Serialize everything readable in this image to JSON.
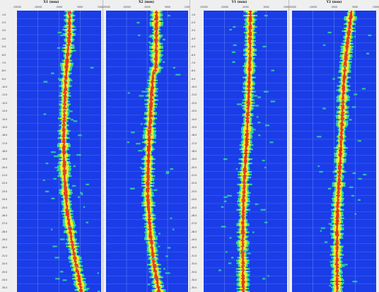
{
  "chart_data": [
    {
      "type": "heatmap",
      "title": "X1 (mm)",
      "xlim": [
        -25000,
        15000
      ],
      "xticks": [
        "-25000",
        "-15000",
        "-5000",
        "5000",
        "15000"
      ],
      "colors": {
        "background": "#1a3de8",
        "low": "#2fd6a0",
        "mid": "#f4ee28",
        "high": "#e8321e"
      },
      "track": [
        {
          "depth_frac": 0.0,
          "x": 0
        },
        {
          "depth_frac": 0.1,
          "x": -200
        },
        {
          "depth_frac": 0.2,
          "x": -1500
        },
        {
          "depth_frac": 0.3,
          "x": -2200
        },
        {
          "depth_frac": 0.45,
          "x": -2800
        },
        {
          "depth_frac": 0.6,
          "x": -2300
        },
        {
          "depth_frac": 0.72,
          "x": -1000
        },
        {
          "depth_frac": 0.85,
          "x": 1800
        },
        {
          "depth_frac": 1.0,
          "x": 5800
        }
      ]
    },
    {
      "type": "heatmap",
      "title": "X2 (mm)",
      "xlim": [
        -25000,
        15000
      ],
      "xticks": [
        "-25000",
        "-15000",
        "-5000",
        "5000",
        "15000"
      ],
      "colors": {
        "background": "#1a3de8",
        "low": "#2fd6a0",
        "mid": "#f4ee28",
        "high": "#e8321e"
      },
      "track": [
        {
          "depth_frac": 0.0,
          "x": -400
        },
        {
          "depth_frac": 0.2,
          "x": -600
        },
        {
          "depth_frac": 0.23,
          "x": -2200
        },
        {
          "depth_frac": 0.35,
          "x": -3200
        },
        {
          "depth_frac": 0.5,
          "x": -4300
        },
        {
          "depth_frac": 0.65,
          "x": -4700
        },
        {
          "depth_frac": 0.8,
          "x": -3300
        },
        {
          "depth_frac": 0.9,
          "x": -1600
        },
        {
          "depth_frac": 1.0,
          "x": 900
        }
      ]
    },
    {
      "type": "heatmap",
      "title": "Y1 (mm)",
      "xlim": [
        -25000,
        15000
      ],
      "xticks": [
        "-25000",
        "-15000",
        "-5000",
        "5000",
        "15000"
      ],
      "colors": {
        "background": "#1a3de8",
        "low": "#2fd6a0",
        "mid": "#f4ee28",
        "high": "#e8321e"
      },
      "track": [
        {
          "depth_frac": 0.0,
          "x": -2600
        },
        {
          "depth_frac": 0.15,
          "x": -2800
        },
        {
          "depth_frac": 0.3,
          "x": -3400
        },
        {
          "depth_frac": 0.45,
          "x": -4300
        },
        {
          "depth_frac": 0.6,
          "x": -5500
        },
        {
          "depth_frac": 0.75,
          "x": -6200
        },
        {
          "depth_frac": 0.9,
          "x": -6200
        },
        {
          "depth_frac": 1.0,
          "x": -6000
        }
      ]
    },
    {
      "type": "heatmap",
      "title": "Y2 (mm)",
      "xlim": [
        -25000,
        15000
      ],
      "xticks": [
        "-25000",
        "-15000",
        "-5000",
        "5000",
        "15000"
      ],
      "colors": {
        "background": "#1a3de8",
        "low": "#2fd6a0",
        "mid": "#f4ee28",
        "high": "#e8321e"
      },
      "track": [
        {
          "depth_frac": 0.0,
          "x": 3200
        },
        {
          "depth_frac": 0.12,
          "x": 1200
        },
        {
          "depth_frac": 0.25,
          "x": -400
        },
        {
          "depth_frac": 0.4,
          "x": -1200
        },
        {
          "depth_frac": 0.55,
          "x": -2300
        },
        {
          "depth_frac": 0.7,
          "x": -3400
        },
        {
          "depth_frac": 0.85,
          "x": -3700
        },
        {
          "depth_frac": 1.0,
          "x": -3500
        }
      ]
    }
  ],
  "depth_axes": [
    {
      "labels": [
        "-1.0",
        "-2.0",
        "-3.0",
        "-4.0",
        "-5.0",
        "-6.0",
        "-7.0",
        "-8.0",
        "-9.0",
        "-10.0",
        "-11.0",
        "-12.0",
        "-13.0",
        "-14.0",
        "-15.0",
        "-16.0",
        "-17.0",
        "-18.0",
        "-19.0",
        "-20.0",
        "-21.0",
        "-22.0",
        "-23.0",
        "-24.0",
        "-25.0",
        "-26.0",
        "-27.0",
        "-28.0",
        "-29.0",
        "-30.0",
        "-31.0",
        "-32.0",
        "-33.0",
        "-34.0",
        "-35.0"
      ]
    },
    {
      "labels": [
        "-1.0",
        "-2.0",
        "-3.0",
        "-4.0",
        "-5.0",
        "-6.0",
        "-7.0",
        "-8.0",
        "-9.0",
        "-10.0",
        "-11.0",
        "-12.0",
        "-13.0",
        "-14.0",
        "-15.0",
        "-16.0",
        "-17.0",
        "-18.0",
        "-19.0",
        "-20.0",
        "-21.0",
        "-22.0",
        "-23.0",
        "-24.0",
        "-25.0",
        "-26.0",
        "-27.0",
        "-28.0",
        "-29.0",
        "-30.0",
        "-31.0",
        "-32.0",
        "-33.0",
        "-34.0",
        "-35.0"
      ]
    }
  ]
}
